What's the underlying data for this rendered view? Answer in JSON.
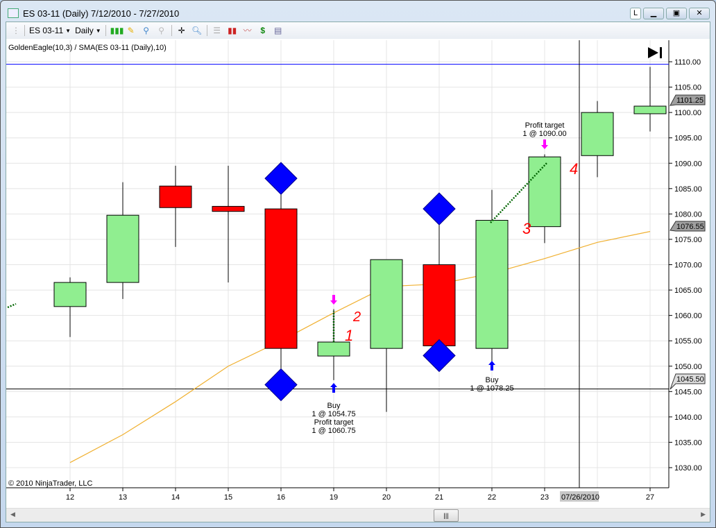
{
  "window": {
    "title": "ES 03-11 (Daily)  7/12/2010 - 7/27/2010",
    "link_button": "L"
  },
  "toolbar": {
    "instrument": "ES 03-11",
    "interval": "Daily"
  },
  "indicator_label": "GoldenEagle(10,3) / SMA(ES 03-11 (Daily),10)",
  "copyright": "© 2010 NinjaTrader, LLC",
  "crosshair_date": "07/26/2010",
  "colors": {
    "up": "#90ee90",
    "down": "#ff0000",
    "signal": "#0000ff",
    "sma": "#f0b030",
    "entry_arrow": "#0000ff",
    "exit_arrow": "#ff00ff",
    "note": "#ff0000"
  },
  "chart_data": {
    "type": "candlestick",
    "categories": [
      "12",
      "13",
      "14",
      "15",
      "16",
      "19",
      "20",
      "21",
      "22",
      "23",
      "26",
      "27"
    ],
    "x_ticks": [
      "12",
      "13",
      "14",
      "15",
      "16",
      "19",
      "20",
      "21",
      "22",
      "23",
      "27"
    ],
    "ylim": [
      1025,
      1115
    ],
    "y_ticks": [
      "1030.00",
      "1035.00",
      "1040.00",
      "1045.00",
      "1050.00",
      "1055.00",
      "1060.00",
      "1065.00",
      "1070.00",
      "1075.00",
      "1080.00",
      "1085.00",
      "1090.00",
      "1095.00",
      "1100.00",
      "1105.00",
      "1110.00"
    ],
    "ohlc": [
      [
        1061.75,
        1067.5,
        1055.75,
        1066.5
      ],
      [
        1066.5,
        1086.25,
        1063.25,
        1079.75
      ],
      [
        1085.5,
        1089.5,
        1073.5,
        1081.25
      ],
      [
        1081.5,
        1089.5,
        1066.5,
        1080.5
      ],
      [
        1081,
        1084,
        1048.25,
        1053.5
      ],
      [
        1052,
        1061.25,
        1047.25,
        1054.75
      ],
      [
        1053.5,
        1071,
        1041,
        1071
      ],
      [
        1070,
        1078,
        1054,
        1054
      ],
      [
        1053.5,
        1084.75,
        1051,
        1078.75
      ],
      [
        1077.5,
        1091.75,
        1074.25,
        1091.25
      ],
      [
        1091.5,
        1102.25,
        1087.25,
        1100
      ],
      [
        1099.75,
        1109,
        1096.25,
        1101.25
      ]
    ],
    "sma_series": {
      "name": "SMA(ES 03-11 (Daily),10)",
      "values": [
        1031,
        1036.5,
        1043,
        1050,
        1055,
        1060.5,
        1065.7,
        1066.2,
        1068.3,
        1071.2,
        1074.4,
        1076.55
      ]
    },
    "signals": [
      {
        "day": "16",
        "where": "above"
      },
      {
        "day": "16",
        "where": "below"
      },
      {
        "day": "21",
        "where": "above"
      },
      {
        "day": "21",
        "where": "below"
      }
    ],
    "horizontal_lines": [
      {
        "price": 1109.5,
        "color": "#0000ff"
      },
      {
        "price": 1045.5,
        "color": "#000000"
      }
    ],
    "price_markers": [
      "1101.25",
      "1076.55",
      "1045.50"
    ],
    "trades": [
      {
        "day": "19",
        "lines": [
          "Buy",
          "1 @ 1054.75",
          "Profit target",
          "1 @ 1060.75"
        ],
        "entry": 1054.75,
        "exit": 1060.75
      },
      {
        "day": "22",
        "lines": [
          "Buy",
          "1 @ 1078.25"
        ],
        "entry": 1078.25
      },
      {
        "day": "23",
        "lines": [
          "Profit target",
          "1 @ 1090.00"
        ],
        "exit": 1090
      }
    ],
    "notes": [
      "1",
      "2",
      "3",
      "4"
    ]
  }
}
